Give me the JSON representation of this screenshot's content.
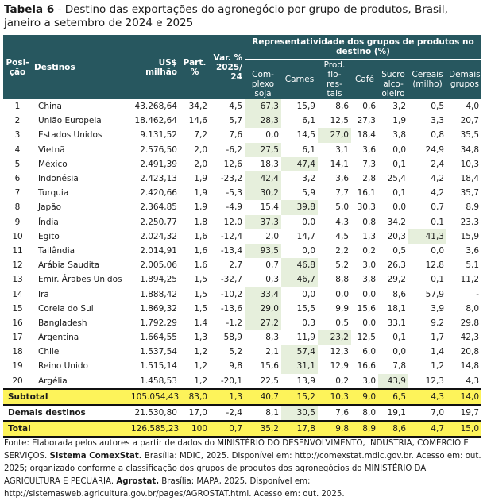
{
  "title": {
    "label": "Tabela 6",
    "text": " - Destino das exportações do agronegócio por grupo de produtos, Brasil, janeiro a setembro de 2024 e 2025"
  },
  "header": {
    "posicao": "Posi-ção",
    "destinos": "Destinos",
    "usd": "US$ milhão",
    "part": "Part. %",
    "var": "Var. % 2025/ 24",
    "group": "Representatividade dos grupos de produtos no destino (%)",
    "soja": "Com-plexo soja",
    "carnes": "Carnes",
    "prod": "Prod. flo-res-tais",
    "cafe": "Café",
    "sucro": "Sucro alco-oleiro",
    "cereais": "Cereais (milho)",
    "demais": "Demais grupos"
  },
  "highlight_color": "#e6efdc",
  "total_color": "#fdf35a",
  "header_color": "#27575f",
  "rows": [
    {
      "pos": "1",
      "dest": "China",
      "usd": "43.268,64",
      "part": "34,2",
      "var": "4,5",
      "soja": "67,3",
      "carnes": "15,9",
      "prod": "8,6",
      "cafe": "0,6",
      "sucro": "3,2",
      "cereais": "0,5",
      "demais": "4,0",
      "highlight": "soja"
    },
    {
      "pos": "2",
      "dest": "União Europeia",
      "usd": "18.462,64",
      "part": "14,6",
      "var": "5,7",
      "soja": "28,3",
      "carnes": "6,1",
      "prod": "12,5",
      "cafe": "27,3",
      "sucro": "1,9",
      "cereais": "3,3",
      "demais": "20,7",
      "highlight": "soja"
    },
    {
      "pos": "3",
      "dest": "Estados Unidos",
      "usd": "9.131,52",
      "part": "7,2",
      "var": "7,6",
      "soja": "0,0",
      "carnes": "14,5",
      "prod": "27,0",
      "cafe": "18,4",
      "sucro": "3,8",
      "cereais": "0,8",
      "demais": "35,5",
      "highlight": "prod"
    },
    {
      "pos": "4",
      "dest": "Vietnã",
      "usd": "2.576,50",
      "part": "2,0",
      "var": "-6,2",
      "soja": "27,5",
      "carnes": "6,1",
      "prod": "3,1",
      "cafe": "3,6",
      "sucro": "0,0",
      "cereais": "24,9",
      "demais": "34,8",
      "highlight": "soja"
    },
    {
      "pos": "5",
      "dest": "México",
      "usd": "2.491,39",
      "part": "2,0",
      "var": "12,6",
      "soja": "18,3",
      "carnes": "47,4",
      "prod": "14,1",
      "cafe": "7,3",
      "sucro": "0,1",
      "cereais": "2,4",
      "demais": "10,3",
      "highlight": "carnes"
    },
    {
      "pos": "6",
      "dest": "Indonésia",
      "usd": "2.423,13",
      "part": "1,9",
      "var": "-23,2",
      "soja": "42,4",
      "carnes": "3,2",
      "prod": "3,6",
      "cafe": "2,8",
      "sucro": "25,4",
      "cereais": "4,2",
      "demais": "18,4",
      "highlight": "soja"
    },
    {
      "pos": "7",
      "dest": "Turquia",
      "usd": "2.420,66",
      "part": "1,9",
      "var": "-5,3",
      "soja": "30,2",
      "carnes": "5,9",
      "prod": "7,7",
      "cafe": "16,1",
      "sucro": "0,1",
      "cereais": "4,2",
      "demais": "35,7",
      "highlight": "soja"
    },
    {
      "pos": "8",
      "dest": "Japão",
      "usd": "2.364,85",
      "part": "1,9",
      "var": "-4,9",
      "soja": "15,4",
      "carnes": "39,8",
      "prod": "5,0",
      "cafe": "30,3",
      "sucro": "0,0",
      "cereais": "0,7",
      "demais": "8,9",
      "highlight": "carnes"
    },
    {
      "pos": "9",
      "dest": "Índia",
      "usd": "2.250,77",
      "part": "1,8",
      "var": "12,0",
      "soja": "37,3",
      "carnes": "0,0",
      "prod": "4,3",
      "cafe": "0,8",
      "sucro": "34,2",
      "cereais": "0,1",
      "demais": "23,3",
      "highlight": "soja"
    },
    {
      "pos": "10",
      "dest": "Egito",
      "usd": "2.024,32",
      "part": "1,6",
      "var": "-12,4",
      "soja": "2,0",
      "carnes": "14,7",
      "prod": "4,5",
      "cafe": "1,3",
      "sucro": "20,3",
      "cereais": "41,3",
      "demais": "15,9",
      "highlight": "cereais"
    },
    {
      "pos": "11",
      "dest": "Tailândia",
      "usd": "2.014,91",
      "part": "1,6",
      "var": "-13,4",
      "soja": "93,5",
      "carnes": "0,0",
      "prod": "2,2",
      "cafe": "0,2",
      "sucro": "0,5",
      "cereais": "0,0",
      "demais": "3,6",
      "highlight": "soja"
    },
    {
      "pos": "12",
      "dest": "Arábia Saudita",
      "usd": "2.005,06",
      "part": "1,6",
      "var": "2,7",
      "soja": "0,7",
      "carnes": "46,8",
      "prod": "5,2",
      "cafe": "3,0",
      "sucro": "26,3",
      "cereais": "12,8",
      "demais": "5,1",
      "highlight": "carnes"
    },
    {
      "pos": "13",
      "dest": "Emir. Árabes Unidos",
      "usd": "1.894,25",
      "part": "1,5",
      "var": "-32,7",
      "soja": "0,3",
      "carnes": "46,7",
      "prod": "8,8",
      "cafe": "3,8",
      "sucro": "29,2",
      "cereais": "0,1",
      "demais": "11,2",
      "highlight": "carnes"
    },
    {
      "pos": "14",
      "dest": "Irã",
      "usd": "1.888,42",
      "part": "1,5",
      "var": "-10,2",
      "soja": "33,4",
      "carnes": "0,0",
      "prod": "0,0",
      "cafe": "0,0",
      "sucro": "8,6",
      "cereais": "57,9",
      "demais": "-",
      "highlight": "soja"
    },
    {
      "pos": "15",
      "dest": "Coreia do Sul",
      "usd": "1.869,32",
      "part": "1,5",
      "var": "-13,6",
      "soja": "29,0",
      "carnes": "15,5",
      "prod": "9,9",
      "cafe": "15,6",
      "sucro": "18,1",
      "cereais": "3,9",
      "demais": "8,0",
      "highlight": "soja"
    },
    {
      "pos": "16",
      "dest": "Bangladesh",
      "usd": "1.792,29",
      "part": "1,4",
      "var": "-1,2",
      "soja": "27,2",
      "carnes": "0,3",
      "prod": "0,5",
      "cafe": "0,0",
      "sucro": "33,1",
      "cereais": "9,2",
      "demais": "29,8",
      "highlight": "soja"
    },
    {
      "pos": "17",
      "dest": "Argentina",
      "usd": "1.664,55",
      "part": "1,3",
      "var": "58,9",
      "soja": "8,3",
      "carnes": "11,9",
      "prod": "23,2",
      "cafe": "12,5",
      "sucro": "0,1",
      "cereais": "1,7",
      "demais": "42,3",
      "highlight": "prod"
    },
    {
      "pos": "18",
      "dest": "Chile",
      "usd": "1.537,54",
      "part": "1,2",
      "var": "5,2",
      "soja": "2,1",
      "carnes": "57,4",
      "prod": "12,3",
      "cafe": "6,0",
      "sucro": "0,0",
      "cereais": "1,4",
      "demais": "20,8",
      "highlight": "carnes"
    },
    {
      "pos": "19",
      "dest": "Reino Unido",
      "usd": "1.515,14",
      "part": "1,2",
      "var": "9,8",
      "soja": "15,6",
      "carnes": "31,1",
      "prod": "12,9",
      "cafe": "16,6",
      "sucro": "7,8",
      "cereais": "1,2",
      "demais": "14,8",
      "highlight": "carnes"
    },
    {
      "pos": "20",
      "dest": "Argélia",
      "usd": "1.458,53",
      "part": "1,2",
      "var": "-20,1",
      "soja": "22,5",
      "carnes": "13,9",
      "prod": "0,2",
      "cafe": "3,0",
      "sucro": "43,9",
      "cereais": "12,3",
      "demais": "4,3",
      "highlight": "sucro"
    }
  ],
  "summary": [
    {
      "label": "Subtotal",
      "usd": "105.054,43",
      "part": "83,0",
      "var": "1,3",
      "soja": "40,7",
      "carnes": "15,2",
      "prod": "10,3",
      "cafe": "9,0",
      "sucro": "6,5",
      "cereais": "4,3",
      "demais": "14,0",
      "style": "yellow sub",
      "highlight": ""
    },
    {
      "label": "Demais destinos",
      "usd": "21.530,80",
      "part": "17,0",
      "var": "-2,4",
      "soja": "8,1",
      "carnes": "30,5",
      "prod": "7,6",
      "cafe": "8,0",
      "sucro": "19,1",
      "cereais": "7,0",
      "demais": "19,7",
      "style": "demais",
      "highlight": "carnes"
    },
    {
      "label": "Total",
      "usd": "126.585,23",
      "part": "100",
      "var": "0,7",
      "soja": "35,2",
      "carnes": "17,8",
      "prod": "9,8",
      "cafe": "8,9",
      "sucro": "8,6",
      "cereais": "4,7",
      "demais": "15,0",
      "style": "yellow tot",
      "highlight": ""
    }
  ],
  "fonte": {
    "p1": "Fonte: Elaborada pelos autores a partir de dados do MINISTÉRIO DO DESENVOLVIMENTO, INDÚSTRIA, COMÉRCIO E SERVIÇOS. ",
    "b1": "Sistema ComexStat.",
    "p2": " Brasília: MDIC, 2025. Disponível em: http://comexstat.mdic.gov.br. Acesso em: out. 2025; organizado conforme a classificação dos grupos de produtos dos agronegócios do MINISTÉRIO DA AGRICULTURA E PECUÁRIA. ",
    "b2": "Agrostat.",
    "p3": " Brasília: MAPA, 2025. Disponível em: http://sistemasweb.agricultura.gov.br/pages/AGROSTAT.html. Acesso em: out. 2025."
  }
}
